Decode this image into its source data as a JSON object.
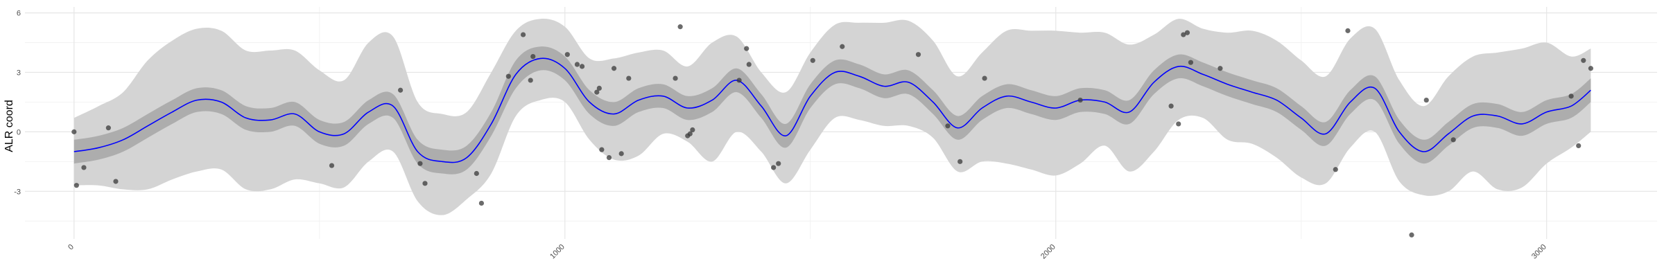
{
  "chart_data": {
    "type": "line",
    "title": "",
    "xlabel": "",
    "ylabel": "ALR coord",
    "xlim": [
      -100,
      3225
    ],
    "ylim": [
      -5.4,
      6.3
    ],
    "grid": true,
    "x_ticks": [
      0,
      1000,
      2000,
      3000
    ],
    "x_tick_labels": [
      "0",
      "1000",
      "2000",
      "3000"
    ],
    "y_ticks": [
      -3,
      0,
      3,
      6
    ],
    "y_tick_labels": [
      "-3",
      "0",
      "3",
      "6"
    ],
    "colors": {
      "line": "#0000ff",
      "inner_band": "#adadad",
      "outer_band": "#d4d4d4",
      "points": "#3a3a3a",
      "grid_major": "#e6e6e6",
      "grid_minor": "#f2f2f2"
    },
    "series": [
      {
        "role": "mean-line",
        "x": [
          0,
          50,
          100,
          150,
          200,
          250,
          300,
          350,
          400,
          450,
          500,
          550,
          600,
          650,
          700,
          750,
          800,
          850,
          900,
          950,
          1000,
          1050,
          1100,
          1150,
          1200,
          1250,
          1300,
          1350,
          1400,
          1450,
          1500,
          1550,
          1600,
          1650,
          1700,
          1750,
          1800,
          1850,
          1900,
          1950,
          2000,
          2050,
          2100,
          2150,
          2200,
          2250,
          2300,
          2350,
          2400,
          2450,
          2500,
          2550,
          2600,
          2650,
          2700,
          2750,
          2800,
          2850,
          2900,
          2950,
          3000,
          3050,
          3090
        ],
        "y": [
          -1.0,
          -0.8,
          -0.4,
          0.3,
          1.0,
          1.6,
          1.5,
          0.7,
          0.6,
          0.9,
          0.0,
          -0.1,
          1.0,
          1.3,
          -1.0,
          -1.5,
          -1.3,
          0.4,
          2.9,
          3.7,
          3.2,
          1.5,
          0.9,
          1.6,
          1.8,
          1.2,
          1.6,
          2.6,
          1.3,
          -0.2,
          1.8,
          3.0,
          2.8,
          2.3,
          2.5,
          1.5,
          0.2,
          1.2,
          1.8,
          1.5,
          1.2,
          1.6,
          1.5,
          1.0,
          2.5,
          3.3,
          2.9,
          2.4,
          2.0,
          1.6,
          0.7,
          -0.1,
          1.5,
          2.2,
          0.0,
          -1.0,
          -0.1,
          0.8,
          0.8,
          0.4,
          1.0,
          1.3,
          2.1
        ]
      },
      {
        "role": "inner-band",
        "x": [
          0,
          50,
          100,
          150,
          200,
          250,
          300,
          350,
          400,
          450,
          500,
          550,
          600,
          650,
          700,
          750,
          800,
          850,
          900,
          950,
          1000,
          1050,
          1100,
          1150,
          1200,
          1250,
          1300,
          1350,
          1400,
          1450,
          1500,
          1550,
          1600,
          1650,
          1700,
          1750,
          1800,
          1850,
          1900,
          1950,
          2000,
          2050,
          2100,
          2150,
          2200,
          2250,
          2300,
          2350,
          2400,
          2450,
          2500,
          2550,
          2600,
          2650,
          2700,
          2750,
          2800,
          2850,
          2900,
          2950,
          3000,
          3050,
          3090
        ],
        "low": [
          -1.6,
          -1.4,
          -1.0,
          -0.3,
          0.4,
          1.0,
          0.9,
          0.1,
          0.0,
          0.3,
          -0.6,
          -0.7,
          0.4,
          0.7,
          -1.6,
          -2.1,
          -1.9,
          -0.2,
          2.2,
          3.1,
          2.6,
          0.9,
          0.3,
          1.0,
          1.2,
          0.6,
          1.0,
          2.0,
          0.7,
          -0.8,
          1.2,
          2.4,
          2.2,
          1.7,
          1.9,
          0.9,
          -0.4,
          0.6,
          1.2,
          0.9,
          0.6,
          1.0,
          0.9,
          0.4,
          1.9,
          2.7,
          2.3,
          1.8,
          1.4,
          1.0,
          0.1,
          -0.7,
          0.9,
          1.6,
          -0.6,
          -1.6,
          -0.7,
          0.2,
          0.2,
          -0.2,
          0.4,
          0.7,
          1.5
        ],
        "high": [
          -0.4,
          -0.2,
          0.2,
          0.9,
          1.6,
          2.2,
          2.1,
          1.3,
          1.2,
          1.5,
          0.6,
          0.5,
          1.6,
          1.9,
          -0.4,
          -0.9,
          -0.7,
          1.0,
          3.6,
          4.3,
          3.8,
          2.1,
          1.5,
          2.2,
          2.4,
          1.8,
          2.2,
          3.2,
          1.9,
          0.4,
          2.4,
          3.6,
          3.4,
          2.9,
          3.1,
          2.1,
          0.8,
          1.8,
          2.4,
          2.1,
          1.8,
          2.2,
          2.1,
          1.6,
          3.1,
          3.9,
          3.5,
          3.0,
          2.6,
          2.2,
          1.3,
          0.5,
          2.1,
          2.8,
          0.6,
          -0.4,
          0.5,
          1.4,
          1.4,
          1.0,
          1.6,
          1.9,
          2.7
        ]
      },
      {
        "role": "outer-band",
        "x": [
          0,
          50,
          100,
          150,
          200,
          250,
          300,
          350,
          400,
          450,
          500,
          550,
          600,
          650,
          700,
          750,
          800,
          850,
          900,
          950,
          1000,
          1050,
          1100,
          1150,
          1200,
          1250,
          1300,
          1350,
          1400,
          1450,
          1500,
          1550,
          1600,
          1650,
          1700,
          1750,
          1800,
          1850,
          1900,
          1950,
          2000,
          2050,
          2100,
          2150,
          2200,
          2250,
          2300,
          2350,
          2400,
          2450,
          2500,
          2550,
          2600,
          2650,
          2700,
          2750,
          2800,
          2850,
          2900,
          2950,
          3000,
          3050,
          3090
        ],
        "low": [
          -2.7,
          -2.7,
          -2.9,
          -2.9,
          -2.4,
          -2.0,
          -1.9,
          -2.9,
          -2.9,
          -2.4,
          -2.6,
          -2.8,
          -1.5,
          -1.0,
          -3.5,
          -4.2,
          -3.4,
          -2.1,
          0.8,
          1.6,
          1.5,
          -0.4,
          -1.4,
          -1.2,
          -0.1,
          -0.5,
          -1.5,
          0.0,
          -1.0,
          -2.6,
          -0.9,
          0.7,
          0.6,
          0.3,
          0.3,
          -0.3,
          -2.0,
          -1.5,
          -1.6,
          -1.9,
          -2.2,
          -1.6,
          -0.7,
          -2.0,
          -1.0,
          0.6,
          0.7,
          -0.4,
          -0.6,
          -1.3,
          -2.3,
          -2.6,
          -0.8,
          0.0,
          -2.5,
          -3.2,
          -3.0,
          -2.0,
          -2.9,
          -2.8,
          -1.6,
          -0.8,
          0.0
        ],
        "high": [
          0.7,
          1.3,
          2.0,
          3.6,
          4.6,
          5.2,
          5.1,
          4.1,
          4.1,
          4.1,
          3.1,
          2.6,
          4.5,
          4.8,
          1.5,
          0.9,
          1.0,
          3.0,
          5.1,
          5.7,
          5.3,
          3.7,
          3.7,
          4.0,
          4.1,
          3.3,
          4.5,
          4.8,
          3.0,
          2.0,
          4.0,
          5.4,
          5.5,
          5.5,
          5.6,
          4.6,
          2.8,
          4.0,
          5.1,
          5.1,
          5.1,
          5.0,
          5.0,
          4.4,
          4.9,
          5.7,
          5.2,
          5.0,
          5.1,
          4.6,
          3.6,
          2.8,
          4.7,
          5.2,
          2.6,
          1.3,
          2.8,
          3.8,
          4.0,
          4.2,
          4.5,
          3.8,
          4.2
        ]
      },
      {
        "role": "observations",
        "x": [
          0,
          5,
          20,
          70,
          85,
          525,
          665,
          705,
          715,
          820,
          830,
          885,
          915,
          930,
          935,
          1005,
          1025,
          1035,
          1065,
          1070,
          1075,
          1090,
          1100,
          1115,
          1130,
          1225,
          1235,
          1250,
          1255,
          1260,
          1355,
          1370,
          1375,
          1425,
          1435,
          1505,
          1565,
          1720,
          1780,
          1805,
          1855,
          2050,
          2235,
          2250,
          2260,
          2268,
          2275,
          2335,
          2570,
          2595,
          2725,
          2755,
          2810,
          3050,
          3065,
          3075,
          3090
        ],
        "y": [
          0.0,
          -2.7,
          -1.8,
          0.2,
          -2.5,
          -1.7,
          2.1,
          -1.6,
          -2.6,
          -2.1,
          -3.6,
          2.8,
          4.9,
          2.6,
          3.8,
          3.9,
          3.4,
          3.3,
          2.0,
          2.2,
          -0.9,
          -1.3,
          3.2,
          -1.1,
          2.7,
          2.7,
          5.3,
          -0.2,
          -0.1,
          0.1,
          2.6,
          4.2,
          3.4,
          -1.8,
          -1.6,
          3.6,
          4.3,
          3.9,
          0.3,
          -1.5,
          2.7,
          1.6,
          1.3,
          0.4,
          4.9,
          5.0,
          3.5,
          3.2,
          -1.9,
          5.1,
          -5.2,
          1.6,
          -0.4,
          1.8,
          -0.7,
          3.6,
          3.2
        ]
      }
    ]
  }
}
